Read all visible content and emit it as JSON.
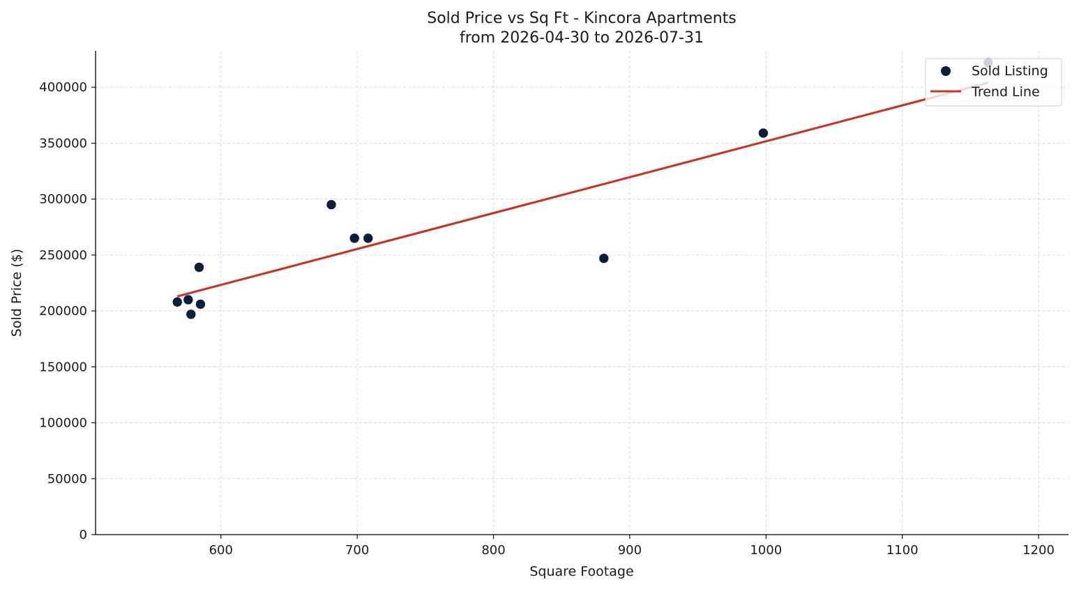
{
  "chart_data": {
    "type": "scatter",
    "title": "Sold Price vs Sq Ft - Kincora Apartments",
    "subtitle": "from 2026-04-30 to 2026-07-31",
    "xlabel": "Square Footage",
    "ylabel": "Sold Price ($)",
    "xlim": [
      508,
      1222
    ],
    "ylim": [
      0,
      432500
    ],
    "x_ticks": [
      600,
      700,
      800,
      900,
      1000,
      1100,
      1200
    ],
    "y_ticks": [
      0,
      50000,
      100000,
      150000,
      200000,
      250000,
      300000,
      350000,
      400000
    ],
    "grid": true,
    "legend_position": "top-right",
    "series": [
      {
        "name": "Sold Listing",
        "kind": "scatter",
        "color": "#0b1f3a",
        "points": [
          {
            "x": 568,
            "y": 208000
          },
          {
            "x": 576,
            "y": 210000
          },
          {
            "x": 578,
            "y": 197000
          },
          {
            "x": 584,
            "y": 239000
          },
          {
            "x": 585,
            "y": 206000
          },
          {
            "x": 681,
            "y": 295000
          },
          {
            "x": 698,
            "y": 265000
          },
          {
            "x": 708,
            "y": 265000
          },
          {
            "x": 881,
            "y": 247000
          },
          {
            "x": 998,
            "y": 359000
          },
          {
            "x": 1163,
            "y": 422000
          }
        ]
      },
      {
        "name": "Trend Line",
        "kind": "line",
        "color": "#c0392b",
        "points": [
          {
            "x": 568,
            "y": 213000
          },
          {
            "x": 1163,
            "y": 404000
          }
        ]
      }
    ]
  }
}
